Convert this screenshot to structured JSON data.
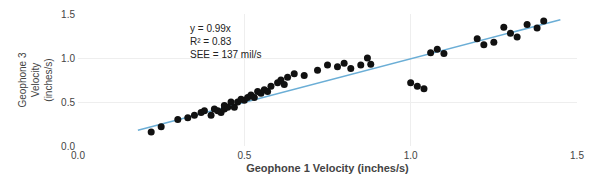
{
  "chart_data": {
    "type": "scatter",
    "xlabel": "Geophone 1 Velocity (inches/s)",
    "ylabel": "Geophone 3\nVelocity\n(inches/s)",
    "annotation": "y = 0.99x\nR² = 0.83\nSEE = 137 mil/s",
    "series": [
      {
        "type": "scatter",
        "marker": "circle",
        "color": "#111111",
        "x": [
          0.22,
          0.25,
          0.3,
          0.33,
          0.35,
          0.37,
          0.38,
          0.4,
          0.41,
          0.42,
          0.43,
          0.44,
          0.44,
          0.45,
          0.46,
          0.47,
          0.48,
          0.49,
          0.5,
          0.51,
          0.52,
          0.53,
          0.54,
          0.55,
          0.56,
          0.57,
          0.58,
          0.6,
          0.61,
          0.62,
          0.63,
          0.65,
          0.68,
          0.72,
          0.75,
          0.78,
          0.8,
          0.82,
          0.85,
          0.87,
          0.88,
          1.0,
          1.02,
          1.04,
          1.06,
          1.08,
          1.1,
          1.2,
          1.22,
          1.25,
          1.28,
          1.3,
          1.32,
          1.35,
          1.38,
          1.4
        ],
        "values": [
          0.16,
          0.22,
          0.3,
          0.32,
          0.35,
          0.38,
          0.4,
          0.35,
          0.42,
          0.4,
          0.38,
          0.42,
          0.46,
          0.44,
          0.5,
          0.44,
          0.5,
          0.53,
          0.52,
          0.55,
          0.58,
          0.55,
          0.62,
          0.6,
          0.64,
          0.62,
          0.68,
          0.72,
          0.75,
          0.7,
          0.78,
          0.82,
          0.8,
          0.86,
          0.92,
          0.9,
          0.94,
          0.88,
          0.92,
          1.0,
          0.93,
          0.72,
          0.68,
          0.65,
          1.06,
          1.1,
          1.05,
          1.22,
          1.15,
          1.18,
          1.35,
          1.28,
          1.24,
          1.38,
          1.34,
          1.42
        ]
      },
      {
        "type": "line",
        "line_style": "solid",
        "color": "#6baed6",
        "x": [
          0.18,
          1.45
        ],
        "values": [
          0.1782,
          1.4355
        ]
      }
    ],
    "xlim": [
      0.0,
      1.5
    ],
    "ylim": [
      0.0,
      1.5
    ],
    "xticks": [
      {
        "value": 0,
        "label": "0.0"
      },
      {
        "value": 0.5,
        "label": "0.5"
      },
      {
        "value": 1,
        "label": "1.0"
      },
      {
        "value": 1.5,
        "label": "1.5"
      }
    ],
    "yticks": [
      {
        "value": 0,
        "label": "0.0"
      },
      {
        "value": 0.5,
        "label": "0.5"
      },
      {
        "value": 1,
        "label": "1.0"
      },
      {
        "value": 1.5,
        "label": "1.5"
      }
    ],
    "grid": true
  }
}
